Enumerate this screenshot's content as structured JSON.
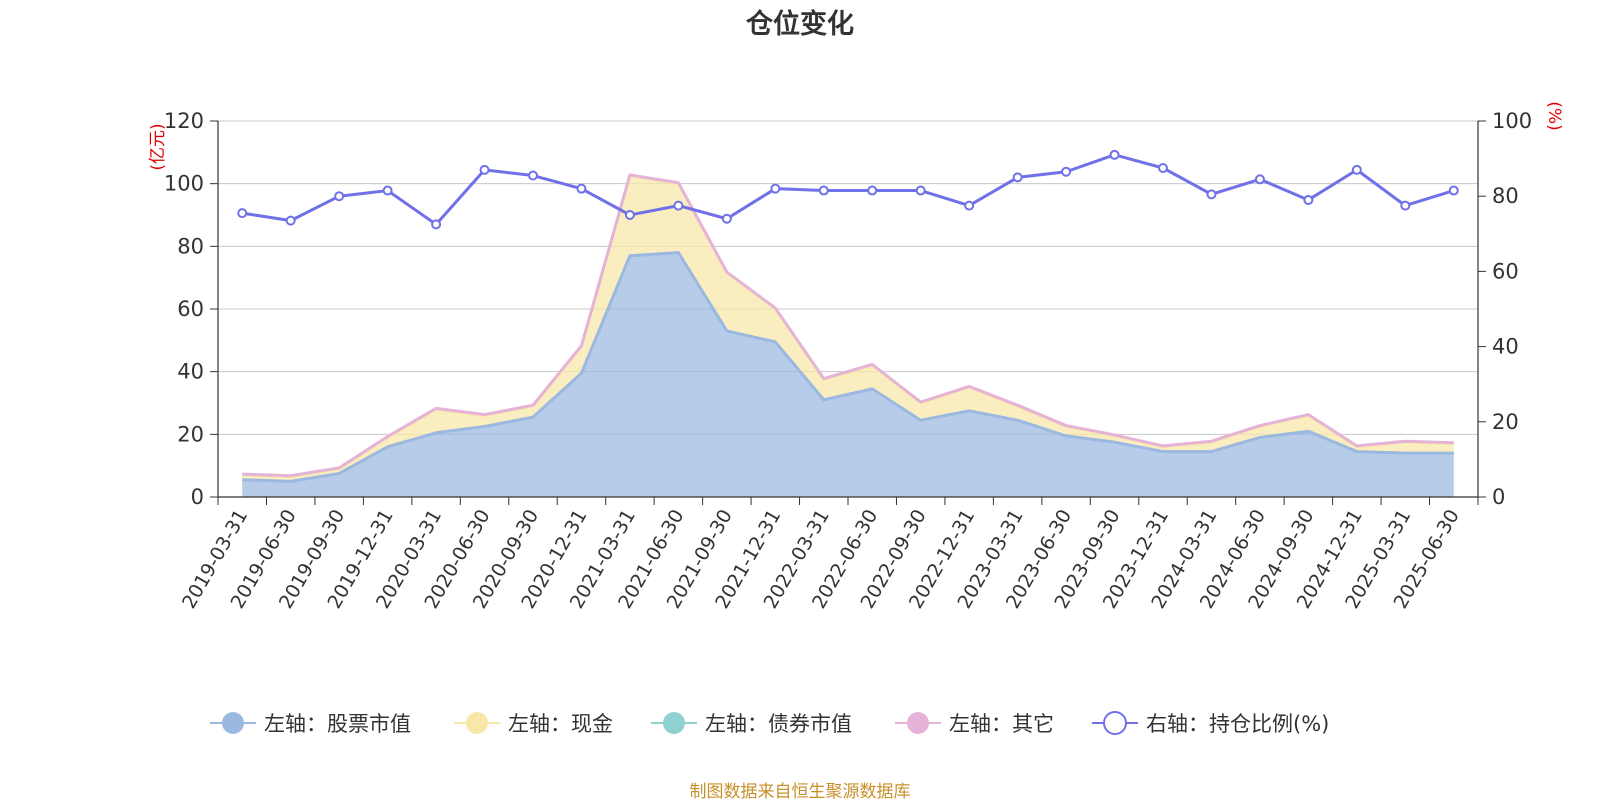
{
  "chart_data": {
    "type": "area",
    "title": "仓位变化",
    "left_axis_unit": "(亿元)",
    "right_axis_unit": "(%)",
    "left_ylim": [
      0,
      120
    ],
    "left_ticks": [
      0,
      20,
      40,
      60,
      80,
      100,
      120
    ],
    "right_ylim": [
      0,
      100
    ],
    "right_ticks": [
      0,
      20,
      40,
      60,
      80,
      100
    ],
    "grid": true,
    "legend_position": "bottom",
    "categories": [
      "2019-03-31",
      "2019-06-30",
      "2019-09-30",
      "2019-12-31",
      "2020-03-31",
      "2020-06-30",
      "2020-09-30",
      "2020-12-31",
      "2021-03-31",
      "2021-06-30",
      "2021-09-30",
      "2021-12-31",
      "2022-03-31",
      "2022-06-30",
      "2022-09-30",
      "2022-12-31",
      "2023-03-31",
      "2023-06-30",
      "2023-09-30",
      "2023-12-31",
      "2024-03-31",
      "2024-06-30",
      "2024-09-30",
      "2024-12-31",
      "2025-03-31",
      "2025-06-30"
    ],
    "series": [
      {
        "name": "左轴：股票市值",
        "axis": "left",
        "color": "#9bb8e0",
        "values": [
          5.5,
          5.0,
          7.5,
          16.0,
          20.5,
          22.5,
          25.5,
          39.5,
          77.0,
          78.0,
          53.0,
          49.5,
          31.0,
          34.5,
          24.5,
          27.5,
          24.5,
          19.5,
          17.5,
          14.5,
          14.5,
          19.0,
          21.0,
          14.5,
          14.0,
          14.0
        ]
      },
      {
        "name": "左轴：现金",
        "axis": "left",
        "color": "#f8e8a8",
        "values": [
          1.5,
          1.5,
          1.5,
          3.0,
          7.5,
          3.5,
          3.5,
          8.5,
          25.5,
          22.0,
          18.5,
          10.5,
          6.5,
          7.5,
          5.5,
          7.5,
          4.5,
          3.0,
          2.0,
          1.5,
          3.0,
          3.5,
          5.0,
          1.5,
          3.5,
          3.0
        ]
      },
      {
        "name": "左轴：债券市值",
        "axis": "left",
        "color": "#8fd0d0",
        "values": [
          0,
          0,
          0,
          0,
          0,
          0,
          0,
          0,
          0,
          0,
          0,
          0,
          0,
          0,
          0,
          0,
          0,
          0,
          0,
          0,
          0,
          0,
          0,
          0,
          0,
          0
        ]
      },
      {
        "name": "左轴：其它",
        "axis": "left",
        "color": "#e6b3d8",
        "values": [
          0.3,
          0.3,
          0.3,
          0.3,
          0.3,
          0.3,
          0.3,
          0.3,
          0.3,
          0.3,
          0.3,
          0.3,
          0.3,
          0.3,
          0.3,
          0.3,
          0.3,
          0.3,
          0.3,
          0.3,
          0.3,
          0.3,
          0.3,
          0.3,
          0.3,
          0.3
        ]
      },
      {
        "name": "右轴：持仓比例(%)",
        "axis": "right",
        "color": "#7070e8",
        "values": [
          75.5,
          73.5,
          80.0,
          81.5,
          72.5,
          87.0,
          85.5,
          82.0,
          75.0,
          77.5,
          74.0,
          82.0,
          81.5,
          81.5,
          81.5,
          77.5,
          85.0,
          86.5,
          91.0,
          87.5,
          80.5,
          84.5,
          79.0,
          87.0,
          77.5,
          81.5
        ]
      }
    ]
  },
  "footer": {
    "source": "制图数据来自恒生聚源数据库"
  }
}
